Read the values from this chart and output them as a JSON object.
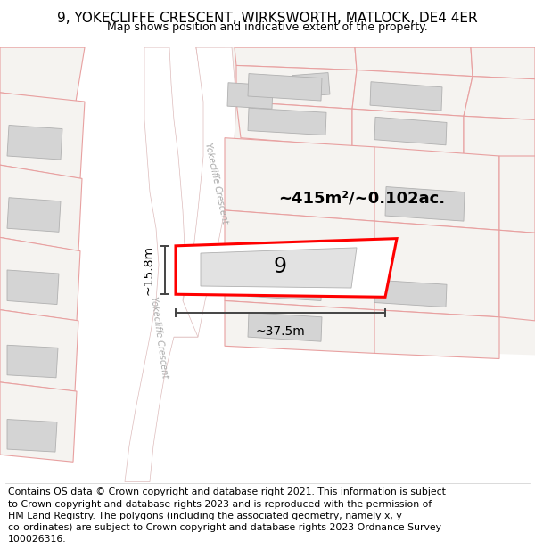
{
  "title": "9, YOKECLIFFE CRESCENT, WIRKSWORTH, MATLOCK, DE4 4ER",
  "subtitle": "Map shows position and indicative extent of the property.",
  "footer": "Contains OS data © Crown copyright and database right 2021. This information is subject\nto Crown copyright and database rights 2023 and is reproduced with the permission of\nHM Land Registry. The polygons (including the associated geometry, namely x, y\nco-ordinates) are subject to Crown copyright and database rights 2023 Ordnance Survey\n100026316.",
  "area_label": "~415m²/~0.102ac.",
  "width_label": "~37.5m",
  "height_label": "~15.8m",
  "property_number": "9",
  "bg_color": "#f0eeeb",
  "road_color": "#ffffff",
  "building_fill": "#d4d4d4",
  "building_outline": "#b0b0b0",
  "plot_outline_color": "#e8a0a0",
  "property_fill": "#ffffff",
  "property_outline": "#ff0000",
  "dim_line_color": "#444444",
  "road_text_color": "#aaaaaa",
  "title_fontsize": 11,
  "subtitle_fontsize": 9,
  "footer_fontsize": 7.8,
  "label_fontsize": 13,
  "dim_fontsize": 10
}
